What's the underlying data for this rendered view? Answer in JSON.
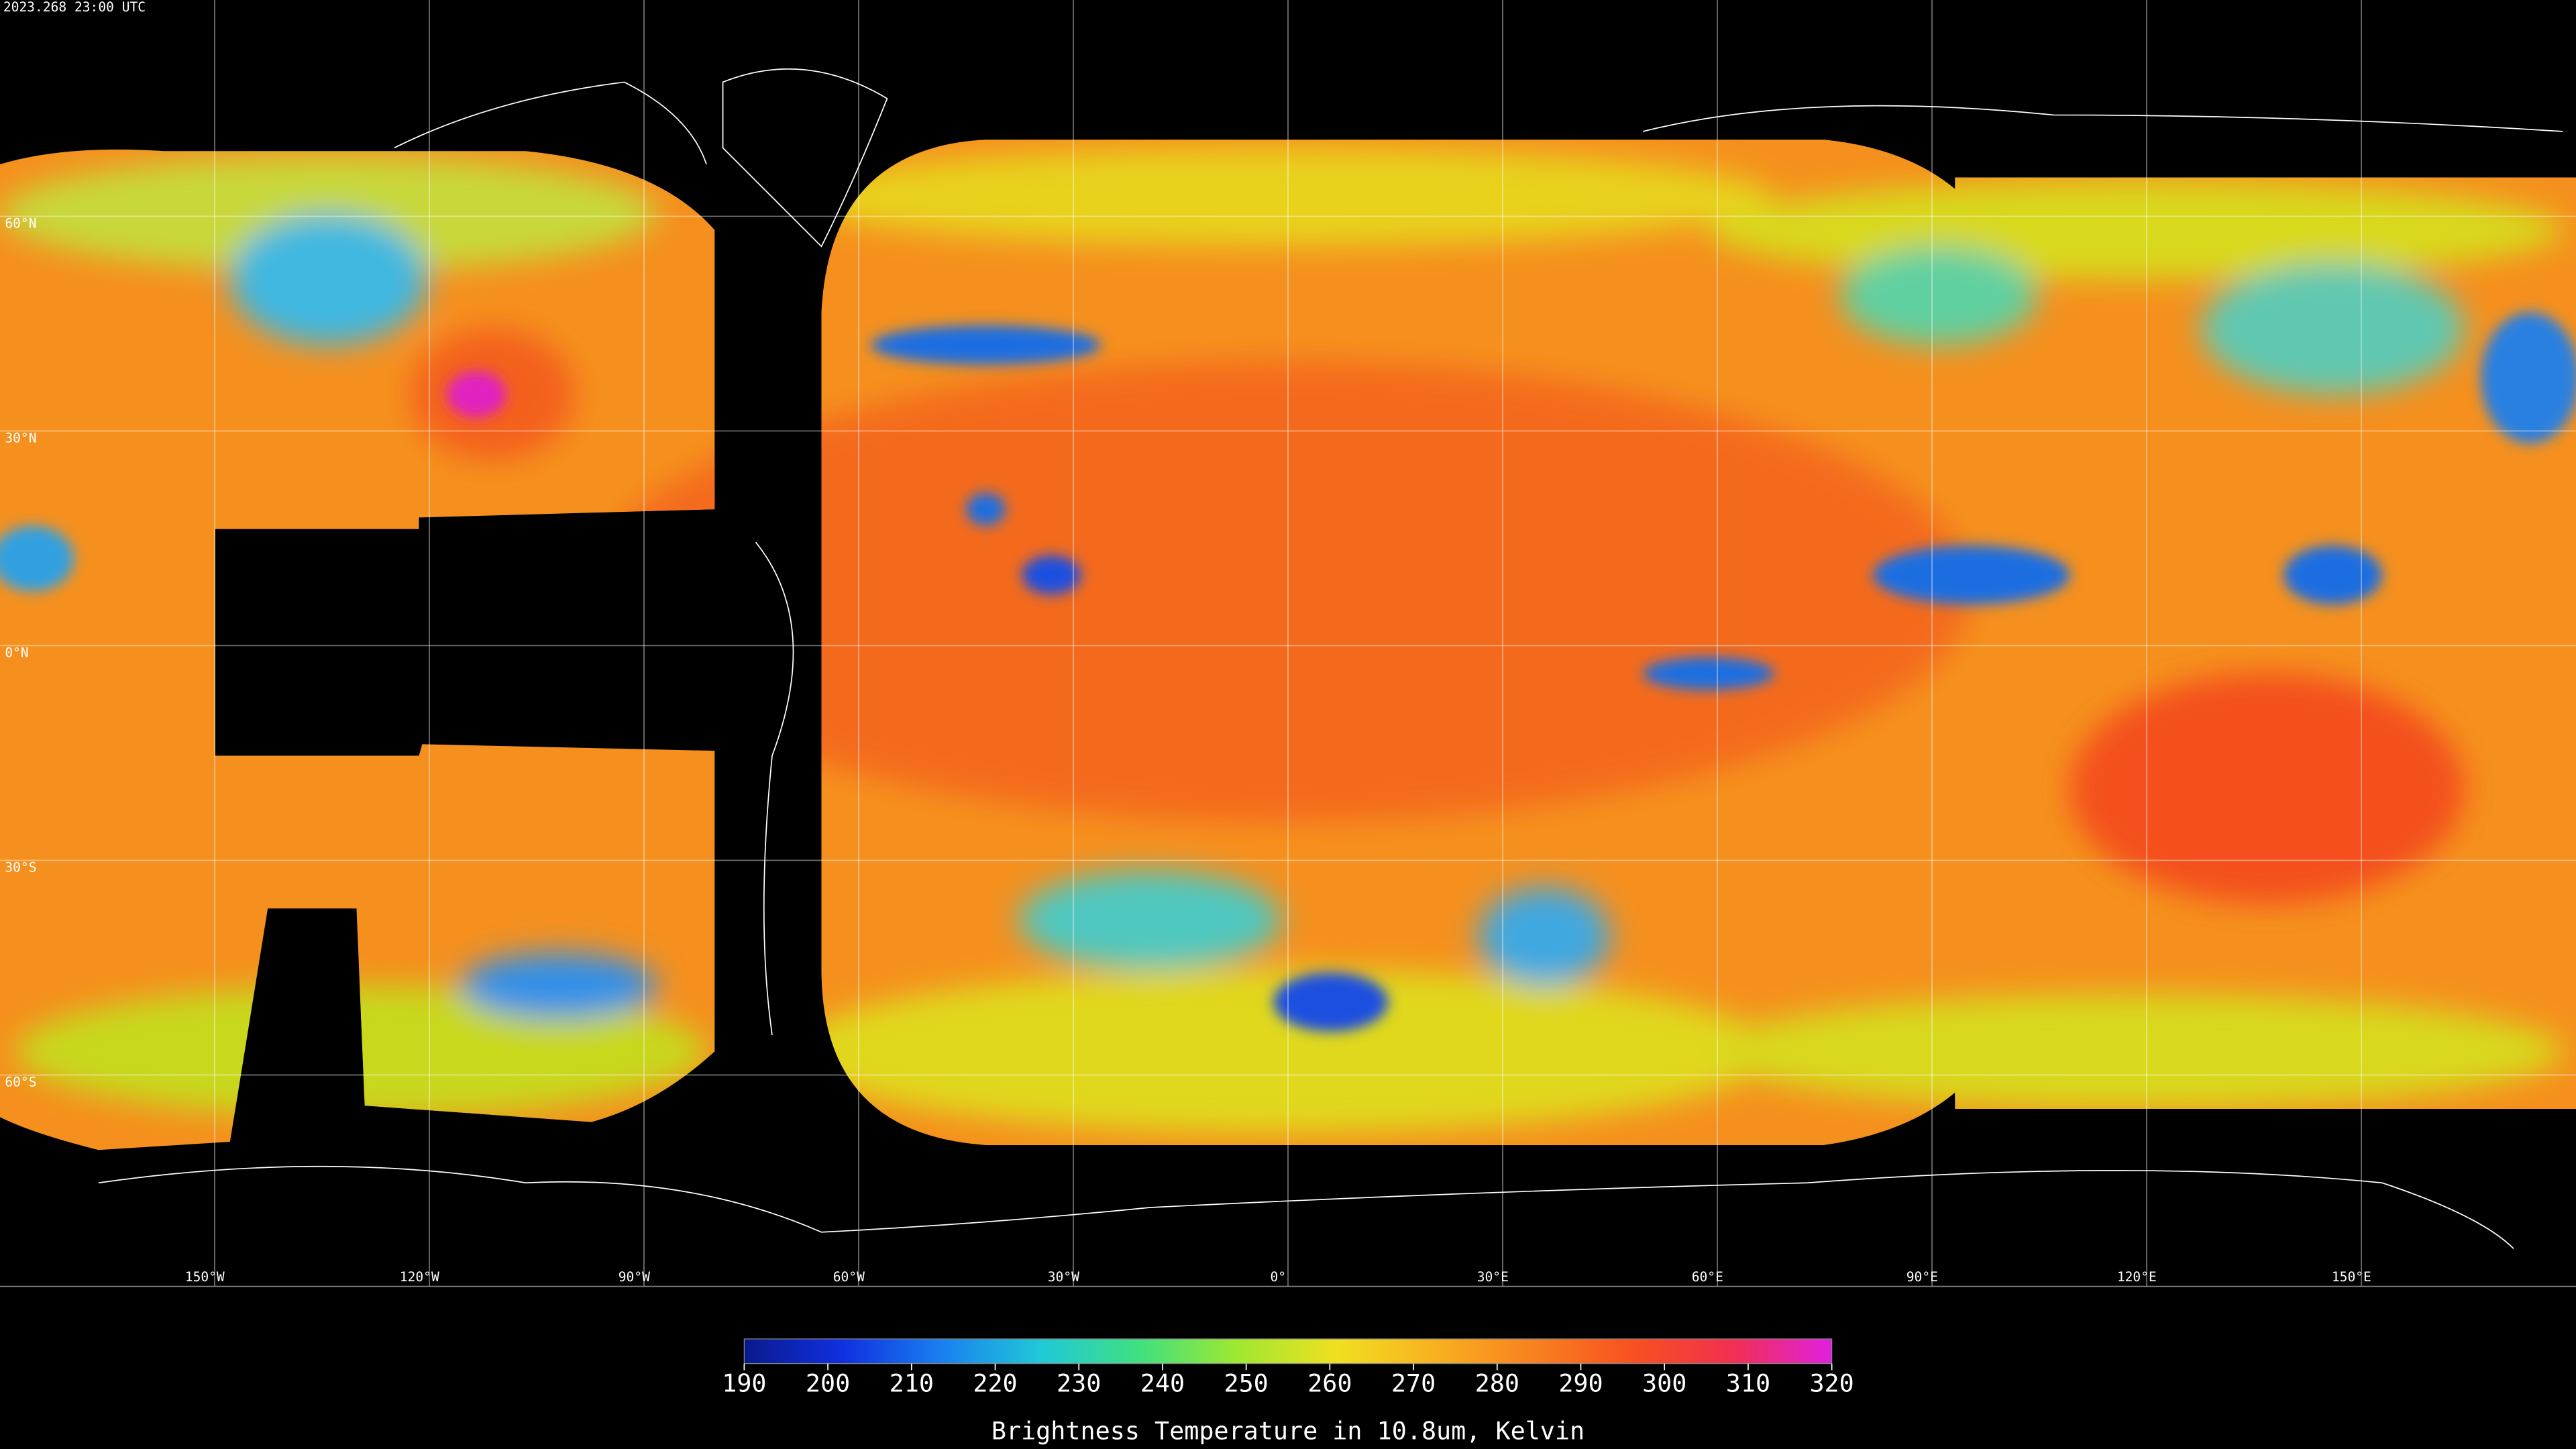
{
  "header": {
    "timestamp": "2023.268 23:00 UTC"
  },
  "grid": {
    "lats": [
      {
        "value": 60,
        "label": "60°N"
      },
      {
        "value": 30,
        "label": "30°N"
      },
      {
        "value": 0,
        "label": "0°N"
      },
      {
        "value": -30,
        "label": "30°S"
      },
      {
        "value": -60,
        "label": "60°S"
      }
    ],
    "lons": [
      {
        "value": -150,
        "label": "150°W"
      },
      {
        "value": -120,
        "label": "120°W"
      },
      {
        "value": -90,
        "label": "90°W"
      },
      {
        "value": -60,
        "label": "60°W"
      },
      {
        "value": -30,
        "label": "30°W"
      },
      {
        "value": 0,
        "label": "0°"
      },
      {
        "value": 30,
        "label": "30°E"
      },
      {
        "value": 60,
        "label": "60°E"
      },
      {
        "value": 90,
        "label": "90°E"
      },
      {
        "value": 120,
        "label": "120°E"
      },
      {
        "value": 150,
        "label": "150°E"
      }
    ]
  },
  "colorbar": {
    "lim": [
      190,
      320
    ],
    "ticks": [
      190,
      200,
      210,
      220,
      230,
      240,
      250,
      260,
      270,
      280,
      290,
      300,
      310,
      320
    ],
    "colors": [
      "#0a1a8c",
      "#1030e0",
      "#1a80f0",
      "#20c8d8",
      "#40e080",
      "#a0e830",
      "#f0e020",
      "#f8b020",
      "#f88020",
      "#f85020",
      "#f03050",
      "#e020e0"
    ],
    "label": "Brightness Temperature in 10.8um, Kelvin"
  }
}
